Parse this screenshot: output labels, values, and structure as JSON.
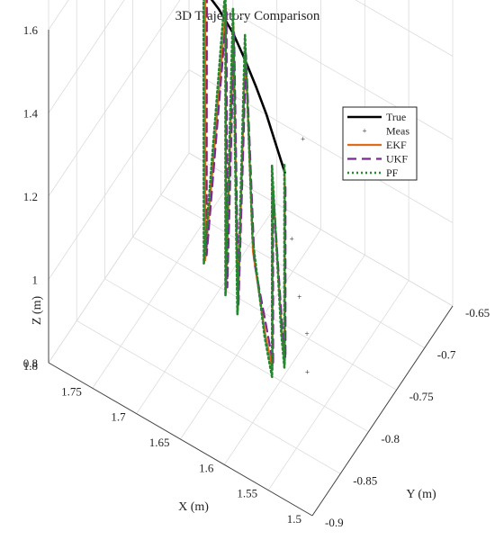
{
  "chart_data": {
    "type": "line",
    "title": "3D Trajectory Comparison",
    "xlabel": "X (m)",
    "ylabel": "Y (m)",
    "zlabel": "Z (m)",
    "xlim": [
      1.5,
      1.8
    ],
    "ylim": [
      -0.9,
      -0.65
    ],
    "zlim": [
      0.8,
      1.6
    ],
    "x_ticks": [
      "1.5",
      "1.55",
      "1.6",
      "1.65",
      "1.7",
      "1.75",
      "1.8"
    ],
    "y_ticks": [
      "-0.9",
      "-0.85",
      "-0.8",
      "-0.75",
      "-0.7",
      "-0.65"
    ],
    "z_ticks": [
      "0.8",
      "1",
      "1.2",
      "1.4",
      "1.6"
    ],
    "grid": true,
    "legend_position": "top-right",
    "series": [
      {
        "name": "True",
        "style": "solid-thick",
        "color": "#000000",
        "points": [
          [
            1.66,
            -0.69,
            1.55
          ],
          [
            1.69,
            -0.71,
            1.55
          ],
          [
            1.71,
            -0.73,
            1.56
          ],
          [
            1.725,
            -0.75,
            1.58
          ],
          [
            1.73,
            -0.765,
            1.6
          ],
          [
            1.725,
            -0.775,
            1.61
          ],
          [
            1.715,
            -0.78,
            1.6
          ],
          [
            1.7,
            -0.782,
            1.585
          ],
          [
            1.68,
            -0.785,
            1.565
          ],
          [
            1.66,
            -0.79,
            1.54
          ],
          [
            1.64,
            -0.8,
            1.52
          ],
          [
            1.62,
            -0.812,
            1.505
          ],
          [
            1.6,
            -0.825,
            1.49
          ],
          [
            1.58,
            -0.84,
            1.475
          ],
          [
            1.56,
            -0.855,
            1.46
          ]
        ]
      },
      {
        "name": "Meas",
        "style": "markers",
        "color": "#999999",
        "points": [
          [
            1.6,
            -0.76,
            1.3
          ],
          [
            1.6,
            -0.78,
            1.1
          ],
          [
            1.585,
            -0.79,
            1.0
          ],
          [
            1.57,
            -0.8,
            0.95
          ],
          [
            1.56,
            -0.815,
            0.9
          ],
          [
            1.655,
            -0.69,
            1.52
          ],
          [
            1.7,
            -0.71,
            1.54
          ],
          [
            1.72,
            -0.77,
            1.58
          ]
        ]
      },
      {
        "name": "EKF",
        "style": "solid",
        "color": "#E06B1A",
        "points": [
          [
            1.67,
            -0.69,
            1.55
          ],
          [
            1.7,
            -0.71,
            1.56
          ],
          [
            1.725,
            -0.76,
            1.59
          ],
          [
            1.72,
            -0.78,
            1.6
          ],
          [
            1.705,
            -0.77,
            1.58
          ],
          [
            1.705,
            -0.77,
            0.9
          ],
          [
            1.675,
            -0.78,
            1.57
          ],
          [
            1.675,
            -0.78,
            0.88
          ],
          [
            1.66,
            -0.79,
            1.56
          ],
          [
            1.655,
            -0.79,
            0.88
          ],
          [
            1.64,
            -0.8,
            1.55
          ],
          [
            1.625,
            -0.81,
            1.1
          ],
          [
            1.605,
            -0.82,
            0.95
          ],
          [
            1.59,
            -0.83,
            0.9
          ],
          [
            1.585,
            -0.838,
            1.38
          ],
          [
            1.57,
            -0.845,
            1.05
          ],
          [
            1.56,
            -0.855,
            1.0
          ],
          [
            1.56,
            -0.855,
            1.45
          ]
        ]
      },
      {
        "name": "UKF",
        "style": "dashed",
        "color": "#7B2A8F",
        "points": [
          [
            1.67,
            -0.69,
            1.56
          ],
          [
            1.7,
            -0.712,
            1.57
          ],
          [
            1.723,
            -0.76,
            1.6
          ],
          [
            1.718,
            -0.78,
            1.59
          ],
          [
            1.703,
            -0.77,
            1.57
          ],
          [
            1.702,
            -0.772,
            0.92
          ],
          [
            1.673,
            -0.782,
            1.56
          ],
          [
            1.672,
            -0.782,
            0.9
          ],
          [
            1.658,
            -0.792,
            1.55
          ],
          [
            1.653,
            -0.792,
            0.9
          ],
          [
            1.638,
            -0.802,
            1.54
          ],
          [
            1.622,
            -0.812,
            1.08
          ],
          [
            1.602,
            -0.822,
            0.97
          ],
          [
            1.588,
            -0.832,
            0.92
          ],
          [
            1.583,
            -0.84,
            1.36
          ],
          [
            1.568,
            -0.847,
            1.06
          ],
          [
            1.558,
            -0.857,
            1.02
          ],
          [
            1.558,
            -0.857,
            1.44
          ]
        ]
      },
      {
        "name": "PF",
        "style": "dotted",
        "color": "#22892F",
        "points": [
          [
            1.67,
            -0.685,
            1.58
          ],
          [
            1.7,
            -0.705,
            1.59
          ],
          [
            1.728,
            -0.755,
            1.62
          ],
          [
            1.724,
            -0.785,
            1.58
          ],
          [
            1.708,
            -0.768,
            1.6
          ],
          [
            1.709,
            -0.766,
            0.88
          ],
          [
            1.678,
            -0.776,
            1.6
          ],
          [
            1.678,
            -0.776,
            0.86
          ],
          [
            1.663,
            -0.786,
            1.59
          ],
          [
            1.658,
            -0.786,
            0.86
          ],
          [
            1.643,
            -0.796,
            1.57
          ],
          [
            1.628,
            -0.806,
            1.12
          ],
          [
            1.608,
            -0.816,
            0.93
          ],
          [
            1.593,
            -0.826,
            0.87
          ],
          [
            1.588,
            -0.834,
            1.4
          ],
          [
            1.573,
            -0.841,
            1.03
          ],
          [
            1.563,
            -0.851,
            0.98
          ],
          [
            1.563,
            -0.851,
            1.47
          ]
        ]
      }
    ]
  }
}
